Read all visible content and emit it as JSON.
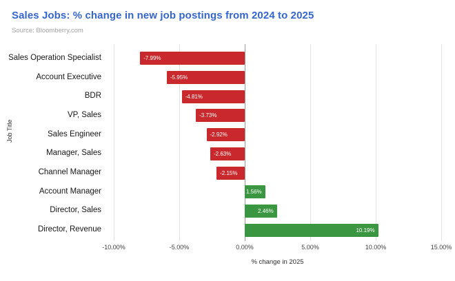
{
  "header": {
    "title": "Sales Jobs: % change in new job postings from 2024 to 2025",
    "source": "Source: Bloomberry.com",
    "title_color": "#3565cf"
  },
  "chart_data": {
    "type": "bar",
    "orientation": "horizontal",
    "title": "Sales Jobs: % change in new job postings from 2024 to 2025",
    "categories": [
      "Sales Operation Specialist",
      "Account Executive",
      "BDR",
      "VP, Sales",
      "Sales Engineer",
      "Manager, Sales",
      "Channel Manager",
      "Account Manager",
      "Director, Sales",
      "Director, Revenue"
    ],
    "values": [
      -7.99,
      -5.95,
      -4.81,
      -3.73,
      -2.92,
      -2.63,
      -2.15,
      1.56,
      2.46,
      10.19
    ],
    "value_labels": [
      "-7.99%",
      "-5.95%",
      "-4.81%",
      "-3.73%",
      "-2.92%",
      "-2.63%",
      "-2.15%",
      "1.56%",
      "2.46%",
      "10.19%"
    ],
    "xlabel": "% change in 2025",
    "ylabel": "Job Title",
    "xlim": [
      -10,
      15
    ],
    "xticks": [
      -10,
      -5,
      0,
      5,
      10,
      15
    ],
    "xtick_labels": [
      "-10.00%",
      "-5.00%",
      "0.00%",
      "5.00%",
      "10.00%",
      "15.00%"
    ],
    "grid": true,
    "legend": "none",
    "negative_color": "#c9292c",
    "positive_color": "#3a9641"
  }
}
